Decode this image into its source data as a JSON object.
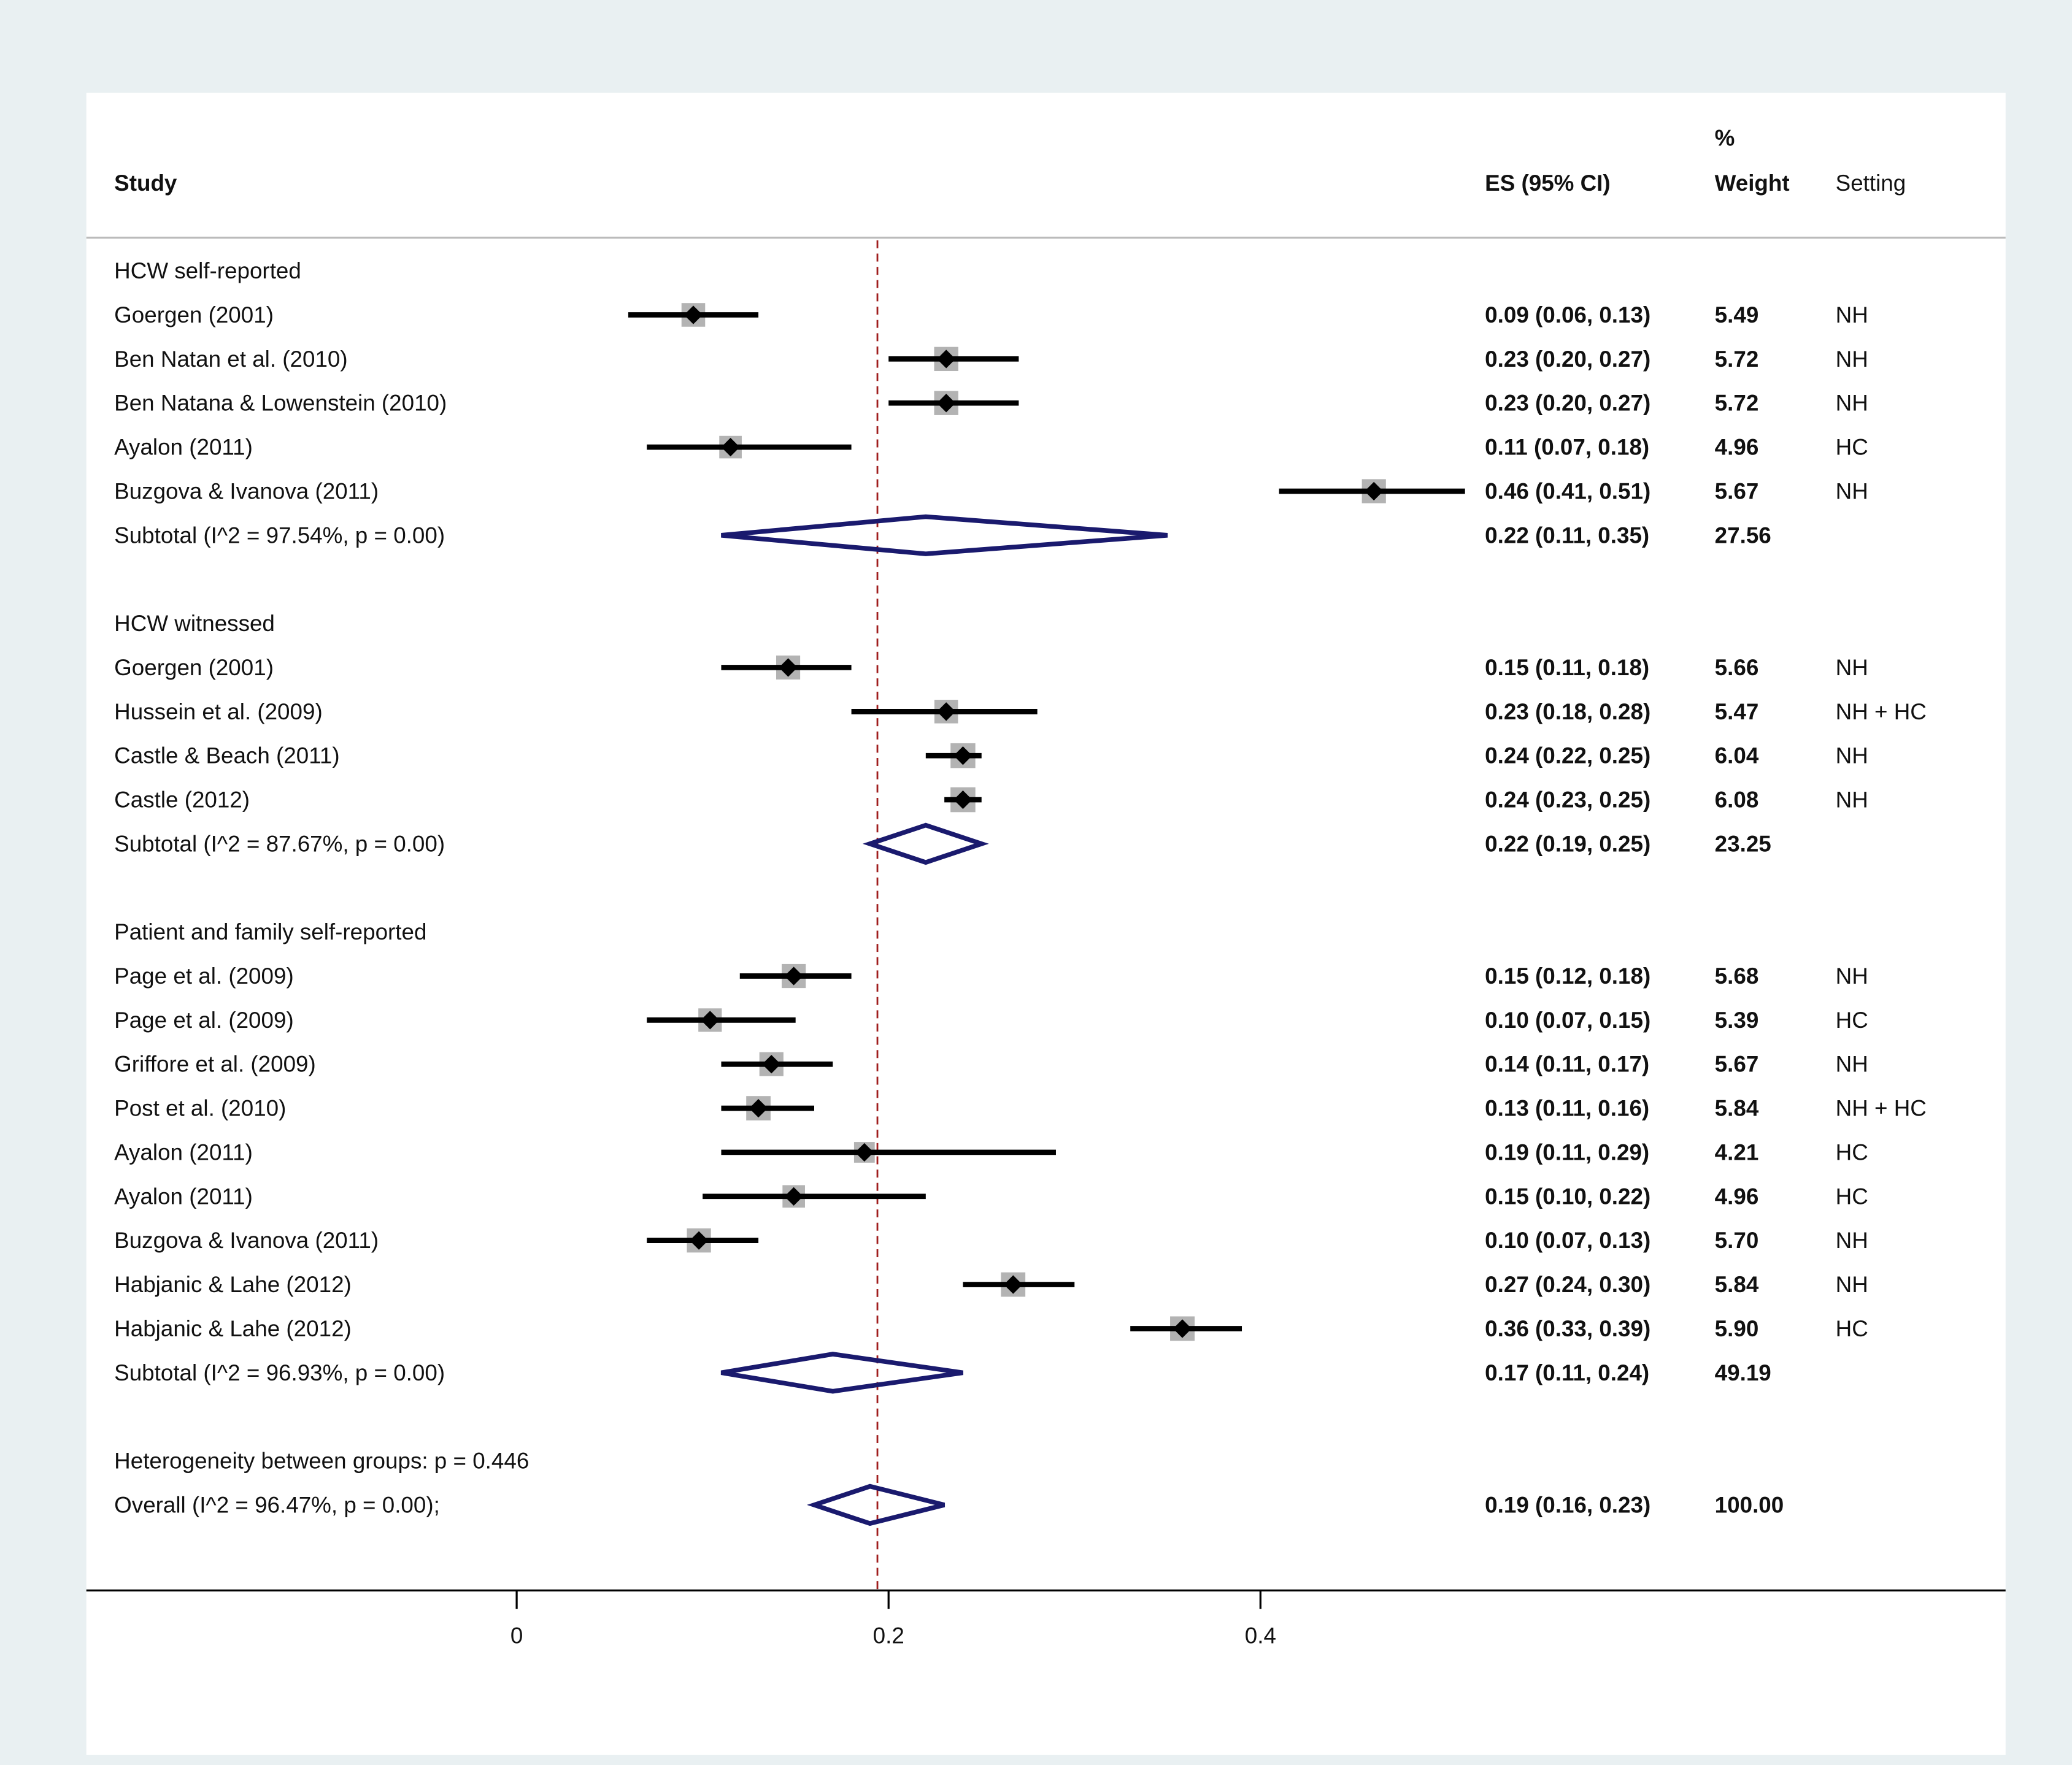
{
  "chart_data": {
    "type": "forest",
    "columns": {
      "study": "Study",
      "es": "ES (95% CI)",
      "weight_top": "%",
      "weight": "Weight",
      "setting": "Setting"
    },
    "xaxis": {
      "ticks": [
        0,
        0.2,
        0.4
      ],
      "tick_labels": [
        "0",
        "0.2",
        "0.4"
      ],
      "range": [
        -0.232,
        0.8
      ]
    },
    "reference_line": 0.194,
    "groups": [
      {
        "label": "HCW self-reported",
        "studies": [
          {
            "study": "Goergen (2001)",
            "es": 0.09,
            "lo": 0.06,
            "hi": 0.13,
            "es_text": "0.09 (0.06, 0.13)",
            "weight": "5.49",
            "setting": "NH",
            "plot_es": 0.095
          },
          {
            "study": "Ben Natan et al. (2010)",
            "es": 0.23,
            "lo": 0.2,
            "hi": 0.27,
            "es_text": "0.23 (0.20, 0.27)",
            "weight": "5.72",
            "setting": "NH",
            "plot_es": 0.231
          },
          {
            "study": "Ben Natana & Lowenstein (2010)",
            "es": 0.23,
            "lo": 0.2,
            "hi": 0.27,
            "es_text": "0.23 (0.20, 0.27)",
            "weight": "5.72",
            "setting": "NH",
            "plot_es": 0.231
          },
          {
            "study": "Ayalon (2011)",
            "es": 0.11,
            "lo": 0.07,
            "hi": 0.18,
            "es_text": "0.11 (0.07, 0.18)",
            "weight": "4.96",
            "setting": "HC",
            "plot_es": 0.115
          },
          {
            "study": "Buzgova & Ivanova (2011)",
            "es": 0.46,
            "lo": 0.41,
            "hi": 0.51,
            "es_text": "0.46 (0.41, 0.51)",
            "weight": "5.67",
            "setting": "NH",
            "plot_es": 0.461
          }
        ],
        "subtotal": {
          "label": "Subtotal  (I^2 = 97.54%, p = 0.00)",
          "es": 0.22,
          "lo": 0.11,
          "hi": 0.35,
          "es_text": "0.22 (0.11, 0.35)",
          "weight": "27.56"
        }
      },
      {
        "label": "HCW witnessed",
        "studies": [
          {
            "study": "Goergen (2001)",
            "es": 0.15,
            "lo": 0.11,
            "hi": 0.18,
            "es_text": "0.15 (0.11, 0.18)",
            "weight": "5.66",
            "setting": "NH",
            "plot_es": 0.146
          },
          {
            "study": "Hussein et al. (2009)",
            "es": 0.23,
            "lo": 0.18,
            "hi": 0.28,
            "es_text": "0.23 (0.18, 0.28)",
            "weight": "5.47",
            "setting": "NH + HC",
            "plot_es": 0.231
          },
          {
            "study": "Castle & Beach (2011)",
            "es": 0.24,
            "lo": 0.22,
            "hi": 0.25,
            "es_text": "0.24 (0.22, 0.25)",
            "weight": "6.04",
            "setting": "NH",
            "plot_es": 0.24
          },
          {
            "study": "Castle (2012)",
            "es": 0.24,
            "lo": 0.23,
            "hi": 0.25,
            "es_text": "0.24 (0.23, 0.25)",
            "weight": "6.08",
            "setting": "NH",
            "plot_es": 0.24
          }
        ],
        "subtotal": {
          "label": "Subtotal  (I^2 = 87.67%, p = 0.00)",
          "es": 0.22,
          "lo": 0.19,
          "hi": 0.25,
          "es_text": "0.22 (0.19, 0.25)",
          "weight": "23.25"
        }
      },
      {
        "label": "Patient and family self-reported",
        "studies": [
          {
            "study": "Page et al. (2009)",
            "es": 0.15,
            "lo": 0.12,
            "hi": 0.18,
            "es_text": "0.15 (0.12, 0.18)",
            "weight": "5.68",
            "setting": "NH",
            "plot_es": 0.149
          },
          {
            "study": "Page et al. (2009)",
            "es": 0.1,
            "lo": 0.07,
            "hi": 0.15,
            "es_text": "0.10 (0.07, 0.15)",
            "weight": "5.39",
            "setting": "HC",
            "plot_es": 0.104
          },
          {
            "study": "Griffore et al. (2009)",
            "es": 0.14,
            "lo": 0.11,
            "hi": 0.17,
            "es_text": "0.14 (0.11, 0.17)",
            "weight": "5.67",
            "setting": "NH",
            "plot_es": 0.137
          },
          {
            "study": "Post et al. (2010)",
            "es": 0.13,
            "lo": 0.11,
            "hi": 0.16,
            "es_text": "0.13 (0.11, 0.16)",
            "weight": "5.84",
            "setting": "NH + HC",
            "plot_es": 0.13
          },
          {
            "study": "Ayalon (2011)",
            "es": 0.19,
            "lo": 0.11,
            "hi": 0.29,
            "es_text": "0.19 (0.11, 0.29)",
            "weight": "4.21",
            "setting": "HC",
            "plot_es": 0.187
          },
          {
            "study": "Ayalon (2011)",
            "es": 0.15,
            "lo": 0.1,
            "hi": 0.22,
            "es_text": "0.15 (0.10, 0.22)",
            "weight": "4.96",
            "setting": "HC",
            "plot_es": 0.149
          },
          {
            "study": "Buzgova & Ivanova (2011)",
            "es": 0.1,
            "lo": 0.07,
            "hi": 0.13,
            "es_text": "0.10 (0.07, 0.13)",
            "weight": "5.70",
            "setting": "NH",
            "plot_es": 0.098
          },
          {
            "study": "Habjanic & Lahe (2012)",
            "es": 0.27,
            "lo": 0.24,
            "hi": 0.3,
            "es_text": "0.27 (0.24, 0.30)",
            "weight": "5.84",
            "setting": "NH",
            "plot_es": 0.267
          },
          {
            "study": "Habjanic & Lahe (2012)",
            "es": 0.36,
            "lo": 0.33,
            "hi": 0.39,
            "es_text": "0.36 (0.33, 0.39)",
            "weight": "5.90",
            "setting": "HC",
            "plot_es": 0.358
          }
        ],
        "subtotal": {
          "label": "Subtotal  (I^2 = 96.93%, p = 0.00)",
          "es": 0.17,
          "lo": 0.11,
          "hi": 0.24,
          "es_text": "0.17 (0.11, 0.24)",
          "weight": "49.19"
        }
      }
    ],
    "heterogeneity": "Heterogeneity between groups: p = 0.446",
    "overall": {
      "label": "Overall  (I^2 = 96.47%, p = 0.00);",
      "es": 0.19,
      "lo": 0.16,
      "hi": 0.23,
      "es_text": "0.19 (0.16, 0.23)",
      "weight": "100.00"
    },
    "colors": {
      "background": "#e9f0f2",
      "panel": "#ffffff",
      "ci_line": "#000000",
      "square": "#b3b3b3",
      "diamond": "#1a1a6e",
      "reference": "#a01e1e"
    }
  }
}
